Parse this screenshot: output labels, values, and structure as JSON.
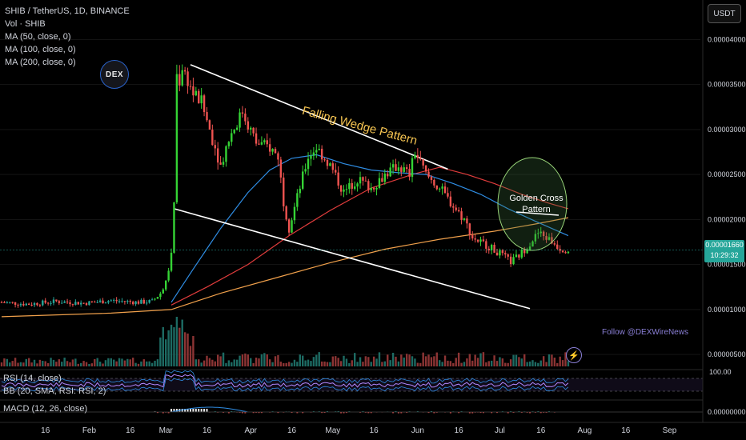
{
  "legend": {
    "symbol": "SHIB / TetherUS, 1D, BINANCE",
    "volume": "Vol · SHIB",
    "ma50": "MA (50, close, 0)",
    "ma100": "MA (100, close, 0)",
    "ma200": "MA (200, close, 0)"
  },
  "unit_button": "USDT",
  "current_price": {
    "value": "0.00001660",
    "countdown": "10:29:32"
  },
  "rsi_label": "RSI (14, close)",
  "bb_label": "BB (20, SMA, RSI: RSI, 2)",
  "macd_label": "MACD (12, 26, close)",
  "rsi_tick": "100.00",
  "macd_tick": "0.00000000",
  "logo_text": "DEX",
  "follow_text": "Follow @DEXWireNews",
  "annotations": {
    "wedge": "Falling Wedge Pattern",
    "golden_line1": "Golden Cross",
    "golden_line2": "Pattern"
  },
  "colors": {
    "up": "#26a69a",
    "up_bright": "#35d435",
    "down": "#ef5350",
    "ma50": "#2f8de4",
    "ma100": "#e03c3c",
    "ma200": "#f0a04b",
    "wedge": "#ffffff",
    "accent": "#f5c451"
  },
  "chart_data": {
    "type": "candlestick",
    "pair": "SHIB / TetherUS",
    "interval": "1D",
    "exchange": "BINANCE",
    "y_ticks": [
      4e-05,
      3.5e-05,
      3e-05,
      2.5e-05,
      2e-05,
      1.5e-05,
      1e-05,
      5e-06
    ],
    "y_tick_labels": [
      "0.00004000",
      "0.00003500",
      "0.00003000",
      "0.00002500",
      "0.00002000",
      "0.00001500",
      "0.00001000",
      "0.00000500"
    ],
    "ylim": [
      3.5e-06,
      4.35e-05
    ],
    "x_labels": [
      "16",
      "Feb",
      "16",
      "Mar",
      "16",
      "Apr",
      "16",
      "May",
      "16",
      "Jun",
      "16",
      "Jul",
      "16",
      "Aug",
      "16",
      "Sep"
    ],
    "x_label_days": [
      16,
      32,
      47,
      60,
      75,
      91,
      106,
      121,
      136,
      152,
      167,
      182,
      197,
      213,
      228,
      244
    ],
    "close_anchors": [
      [
        0,
        1.08e-05
      ],
      [
        10,
        1.06e-05
      ],
      [
        20,
        1.09e-05
      ],
      [
        30,
        1.07e-05
      ],
      [
        40,
        1.1e-05
      ],
      [
        50,
        1.08e-05
      ],
      [
        55,
        1.09e-05
      ],
      [
        58,
        1.18e-05
      ],
      [
        60,
        1.3e-05
      ],
      [
        62,
        1.6e-05
      ],
      [
        63,
        2.2e-05
      ],
      [
        64,
        3.6e-05
      ],
      [
        65,
        3.55e-05
      ],
      [
        66,
        3.7e-05
      ],
      [
        70,
        3.4e-05
      ],
      [
        73,
        3.3e-05
      ],
      [
        76,
        3e-05
      ],
      [
        80,
        2.6e-05
      ],
      [
        83,
        2.9e-05
      ],
      [
        88,
        3.2e-05
      ],
      [
        93,
        2.85e-05
      ],
      [
        98,
        2.8e-05
      ],
      [
        101,
        2.7e-05
      ],
      [
        103,
        2.2e-05
      ],
      [
        105,
        1.9e-05
      ],
      [
        108,
        2.25e-05
      ],
      [
        112,
        2.7e-05
      ],
      [
        115,
        2.8e-05
      ],
      [
        120,
        2.6e-05
      ],
      [
        125,
        2.3e-05
      ],
      [
        130,
        2.45e-05
      ],
      [
        135,
        2.35e-05
      ],
      [
        140,
        2.5e-05
      ],
      [
        145,
        2.6e-05
      ],
      [
        149,
        2.5e-05
      ],
      [
        151,
        2.75e-05
      ],
      [
        155,
        2.5e-05
      ],
      [
        160,
        2.35e-05
      ],
      [
        165,
        2.15e-05
      ],
      [
        169,
        2e-05
      ],
      [
        172,
        1.8e-05
      ],
      [
        178,
        1.7e-05
      ],
      [
        183,
        1.6e-05
      ],
      [
        186,
        1.53e-05
      ],
      [
        189,
        1.6e-05
      ],
      [
        192,
        1.7e-05
      ],
      [
        196,
        1.85e-05
      ],
      [
        200,
        1.78e-05
      ],
      [
        204,
        1.68e-05
      ],
      [
        207,
        1.66e-05
      ]
    ],
    "ma_anchors": {
      "ma50": [
        [
          62,
          1.08e-05
        ],
        [
          70,
          1.45e-05
        ],
        [
          80,
          1.9e-05
        ],
        [
          90,
          2.3e-05
        ],
        [
          98,
          2.55e-05
        ],
        [
          106,
          2.68e-05
        ],
        [
          115,
          2.72e-05
        ],
        [
          125,
          2.62e-05
        ],
        [
          135,
          2.55e-05
        ],
        [
          145,
          2.52e-05
        ],
        [
          155,
          2.5e-05
        ],
        [
          165,
          2.4e-05
        ],
        [
          175,
          2.28e-05
        ],
        [
          185,
          2.12e-05
        ],
        [
          195,
          1.98e-05
        ],
        [
          207,
          1.82e-05
        ]
      ],
      "ma100": [
        [
          62,
          1.05e-05
        ],
        [
          75,
          1.25e-05
        ],
        [
          90,
          1.5e-05
        ],
        [
          105,
          1.82e-05
        ],
        [
          120,
          2.1e-05
        ],
        [
          135,
          2.35e-05
        ],
        [
          150,
          2.5e-05
        ],
        [
          160,
          2.58e-05
        ],
        [
          170,
          2.5e-05
        ],
        [
          180,
          2.4e-05
        ],
        [
          190,
          2.28e-05
        ],
        [
          200,
          2.18e-05
        ],
        [
          207,
          2.12e-05
        ]
      ],
      "ma200": [
        [
          0,
          9.2e-06
        ],
        [
          40,
          9.6e-06
        ],
        [
          62,
          1e-05
        ],
        [
          80,
          1.18e-05
        ],
        [
          100,
          1.35e-05
        ],
        [
          120,
          1.52e-05
        ],
        [
          140,
          1.67e-05
        ],
        [
          160,
          1.78e-05
        ],
        [
          180,
          1.87e-05
        ],
        [
          195,
          1.95e-05
        ],
        [
          207,
          2.02e-05
        ]
      ]
    },
    "wedge_upper": [
      [
        69,
        3.72e-05
      ],
      [
        163,
        2.56e-05
      ]
    ],
    "wedge_lower": [
      [
        63,
        2.12e-05
      ],
      [
        193,
        1.01e-05
      ]
    ]
  }
}
